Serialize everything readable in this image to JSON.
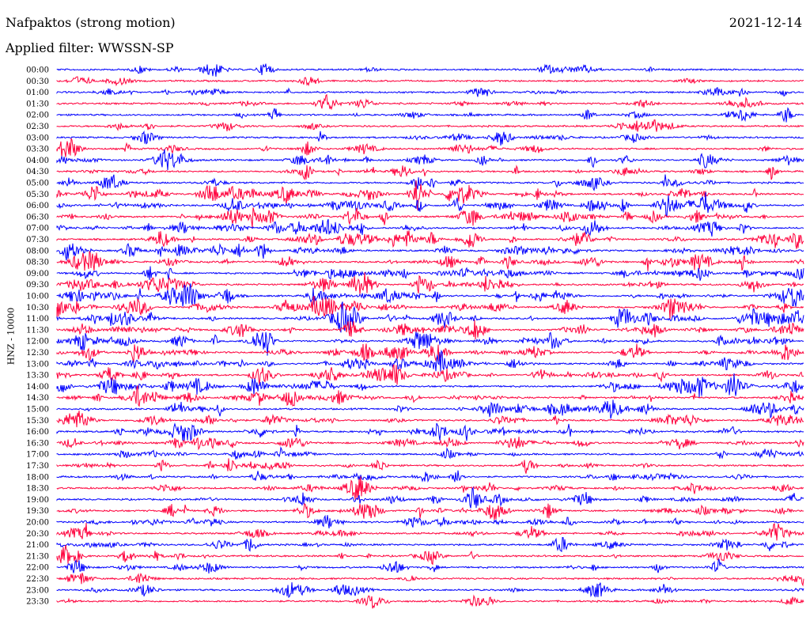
{
  "header": {
    "station": "Nafpaktos (strong motion)",
    "date": "2021-12-14",
    "filter": "Applied filter: WWSSN-SP"
  },
  "chart_data": {
    "type": "line",
    "title": "Nafpaktos (strong motion)",
    "ylabel": "HNZ - 10000",
    "xlabel": "",
    "row_labels": [
      "00:00",
      "00:30",
      "01:00",
      "01:30",
      "02:00",
      "02:30",
      "03:00",
      "03:30",
      "04:00",
      "04:30",
      "05:00",
      "05:30",
      "06:00",
      "06:30",
      "07:00",
      "07:30",
      "08:00",
      "08:30",
      "09:00",
      "09:30",
      "10:00",
      "10:30",
      "11:00",
      "11:30",
      "12:00",
      "12:30",
      "13:00",
      "13:30",
      "14:00",
      "14:30",
      "15:00",
      "15:30",
      "16:00",
      "16:30",
      "17:00",
      "17:30",
      "18:00",
      "18:30",
      "19:00",
      "19:30",
      "20:00",
      "20:30",
      "21:00",
      "21:30",
      "22:00",
      "22:30",
      "23:00",
      "23:30"
    ],
    "activity": [
      0.15,
      0.1,
      0.25,
      0.2,
      0.18,
      0.15,
      0.15,
      0.3,
      0.45,
      0.35,
      0.3,
      0.85,
      0.9,
      0.8,
      0.75,
      0.7,
      0.8,
      0.75,
      0.7,
      0.65,
      0.75,
      0.8,
      0.85,
      0.8,
      0.8,
      0.75,
      0.75,
      0.7,
      0.6,
      0.55,
      0.5,
      0.5,
      0.55,
      0.45,
      0.4,
      0.35,
      0.4,
      0.35,
      0.4,
      0.45,
      0.4,
      0.35,
      0.35,
      0.3,
      0.25,
      0.15,
      0.2,
      0.15
    ],
    "series_colors": [
      "#0000ff",
      "#ff003c"
    ],
    "grid": false
  }
}
